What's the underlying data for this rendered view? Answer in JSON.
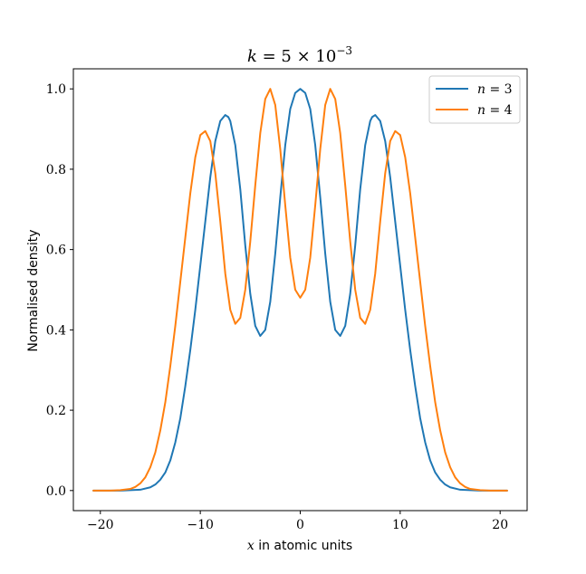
{
  "chart_data": {
    "type": "line",
    "title_parts": {
      "k": "k",
      "eq": " = 5 × 10",
      "exp": "−3"
    },
    "xlabel_parts": {
      "var": "x",
      "rest": " in atomic units"
    },
    "ylabel": "Normalised density",
    "xlim": [
      -22.7,
      22.7
    ],
    "ylim": [
      -0.05,
      1.05
    ],
    "xticks": [
      -20,
      -10,
      0,
      10,
      20
    ],
    "xtick_labels": [
      "−20",
      "−10",
      "0",
      "10",
      "20"
    ],
    "yticks": [
      0.0,
      0.2,
      0.4,
      0.6,
      0.8,
      1.0
    ],
    "ytick_labels": [
      "0.0",
      "0.2",
      "0.4",
      "0.6",
      "0.8",
      "1.0"
    ],
    "grid": false,
    "legend_position": "top-right",
    "series": [
      {
        "name": "n = 3",
        "color": "#1f77b4",
        "x": [
          -20.7,
          -18,
          -17,
          -16,
          -15,
          -14.5,
          -14,
          -13.5,
          -13,
          -12.5,
          -12,
          -11.5,
          -11,
          -10.5,
          -10,
          -9.5,
          -9,
          -8.5,
          -8,
          -7.5,
          -7.2,
          -7,
          -6.5,
          -6,
          -5.5,
          -5,
          -4.5,
          -4,
          -3.5,
          -3,
          -2.5,
          -2,
          -1.5,
          -1,
          -0.5,
          0,
          0.5,
          1,
          1.5,
          2,
          2.5,
          3,
          3.5,
          4,
          4.5,
          5,
          5.5,
          6,
          6.5,
          7,
          7.2,
          7.5,
          8,
          8.5,
          9,
          9.5,
          10,
          10.5,
          11,
          11.5,
          12,
          12.5,
          13,
          13.5,
          14,
          14.5,
          15,
          16,
          17,
          18,
          20.7
        ],
        "y": [
          0.0,
          0.0,
          0.001,
          0.002,
          0.008,
          0.015,
          0.027,
          0.045,
          0.075,
          0.12,
          0.18,
          0.26,
          0.35,
          0.45,
          0.56,
          0.67,
          0.78,
          0.87,
          0.92,
          0.935,
          0.93,
          0.92,
          0.86,
          0.75,
          0.61,
          0.49,
          0.41,
          0.385,
          0.4,
          0.47,
          0.59,
          0.73,
          0.86,
          0.95,
          0.99,
          1.0,
          0.99,
          0.95,
          0.86,
          0.73,
          0.59,
          0.47,
          0.4,
          0.385,
          0.41,
          0.49,
          0.61,
          0.75,
          0.86,
          0.92,
          0.93,
          0.935,
          0.92,
          0.87,
          0.78,
          0.67,
          0.56,
          0.45,
          0.35,
          0.26,
          0.18,
          0.12,
          0.075,
          0.045,
          0.027,
          0.015,
          0.008,
          0.002,
          0.001,
          0.0,
          0.0
        ]
      },
      {
        "name": "n = 4",
        "color": "#ff7f0e",
        "x": [
          -20.7,
          -19,
          -18,
          -17,
          -16.5,
          -16,
          -15.5,
          -15,
          -14.5,
          -14,
          -13.5,
          -13,
          -12.5,
          -12,
          -11.5,
          -11,
          -10.5,
          -10,
          -9.5,
          -9,
          -8.5,
          -8,
          -7.5,
          -7,
          -6.5,
          -6,
          -5.5,
          -5,
          -4.5,
          -4,
          -3.5,
          -3,
          -2.5,
          -2,
          -1.5,
          -1,
          -0.5,
          0,
          0.5,
          1,
          1.5,
          2,
          2.5,
          3,
          3.5,
          4,
          4.5,
          5,
          5.5,
          6,
          6.5,
          7,
          7.5,
          8,
          8.5,
          9,
          9.5,
          10,
          10.5,
          11,
          11.5,
          12,
          12.5,
          13,
          13.5,
          14,
          14.5,
          15,
          15.5,
          16,
          16.5,
          17,
          18,
          19,
          20.7
        ],
        "y": [
          0.0,
          0.0,
          0.001,
          0.004,
          0.009,
          0.018,
          0.033,
          0.058,
          0.095,
          0.15,
          0.22,
          0.31,
          0.41,
          0.52,
          0.63,
          0.74,
          0.83,
          0.885,
          0.895,
          0.87,
          0.79,
          0.67,
          0.54,
          0.45,
          0.415,
          0.43,
          0.5,
          0.62,
          0.76,
          0.89,
          0.975,
          1.0,
          0.96,
          0.85,
          0.71,
          0.58,
          0.5,
          0.48,
          0.5,
          0.58,
          0.71,
          0.85,
          0.96,
          1.0,
          0.975,
          0.89,
          0.76,
          0.62,
          0.5,
          0.43,
          0.415,
          0.45,
          0.54,
          0.67,
          0.79,
          0.87,
          0.895,
          0.885,
          0.83,
          0.74,
          0.63,
          0.52,
          0.41,
          0.31,
          0.22,
          0.15,
          0.095,
          0.058,
          0.033,
          0.018,
          0.009,
          0.004,
          0.001,
          0.0,
          0.0
        ]
      }
    ]
  }
}
